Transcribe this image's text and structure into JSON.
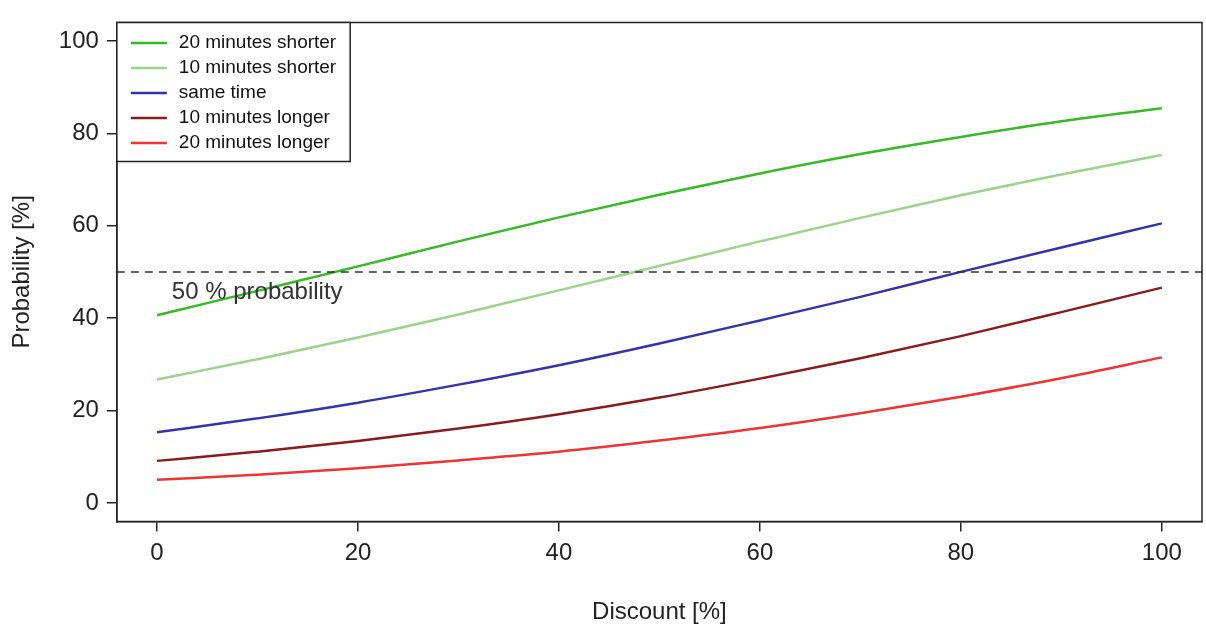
{
  "chart_data": {
    "type": "line",
    "xlabel": "Discount [%]",
    "ylabel": "Probability [%]",
    "x": [
      0,
      10,
      20,
      30,
      40,
      50,
      60,
      70,
      80,
      90,
      100
    ],
    "series": [
      {
        "name": "20 minutes shorter",
        "color": "#33bb22",
        "values": [
          40.6,
          45.9,
          51.2,
          56.6,
          61.8,
          66.7,
          71.3,
          75.5,
          79.2,
          82.6,
          85.4
        ]
      },
      {
        "name": "10 minutes shorter",
        "color": "#99d488",
        "values": [
          26.7,
          31.1,
          35.8,
          40.8,
          46.0,
          51.3,
          56.6,
          61.7,
          66.6,
          71.1,
          75.3
        ]
      },
      {
        "name": "same time",
        "color": "#3333aa",
        "values": [
          15.3,
          18.3,
          21.7,
          25.6,
          29.8,
          34.5,
          39.5,
          44.6,
          50.0,
          55.3,
          60.5
        ]
      },
      {
        "name": "10 minutes longer",
        "color": "#8b1a1a",
        "values": [
          9.1,
          11.1,
          13.4,
          16.1,
          19.2,
          22.8,
          26.9,
          31.3,
          36.1,
          41.3,
          46.6
        ]
      },
      {
        "name": "20 minutes longer",
        "color": "#ee3333",
        "values": [
          5.0,
          6.1,
          7.5,
          9.2,
          11.1,
          13.5,
          16.2,
          19.4,
          23.0,
          27.0,
          31.5
        ]
      }
    ],
    "xlim": [
      -4,
      104
    ],
    "xticks": [
      0,
      20,
      40,
      60,
      80,
      100
    ],
    "ylim": [
      -4,
      104
    ],
    "yticks": [
      0,
      20,
      40,
      60,
      80,
      100
    ],
    "ref_lines": [
      {
        "axis": "y",
        "value": 50,
        "label": "50 % probability",
        "color": "#333333",
        "line_style": "dashed"
      }
    ],
    "grid": false,
    "legend": "top left",
    "marker": "none",
    "line_style": "solid"
  }
}
